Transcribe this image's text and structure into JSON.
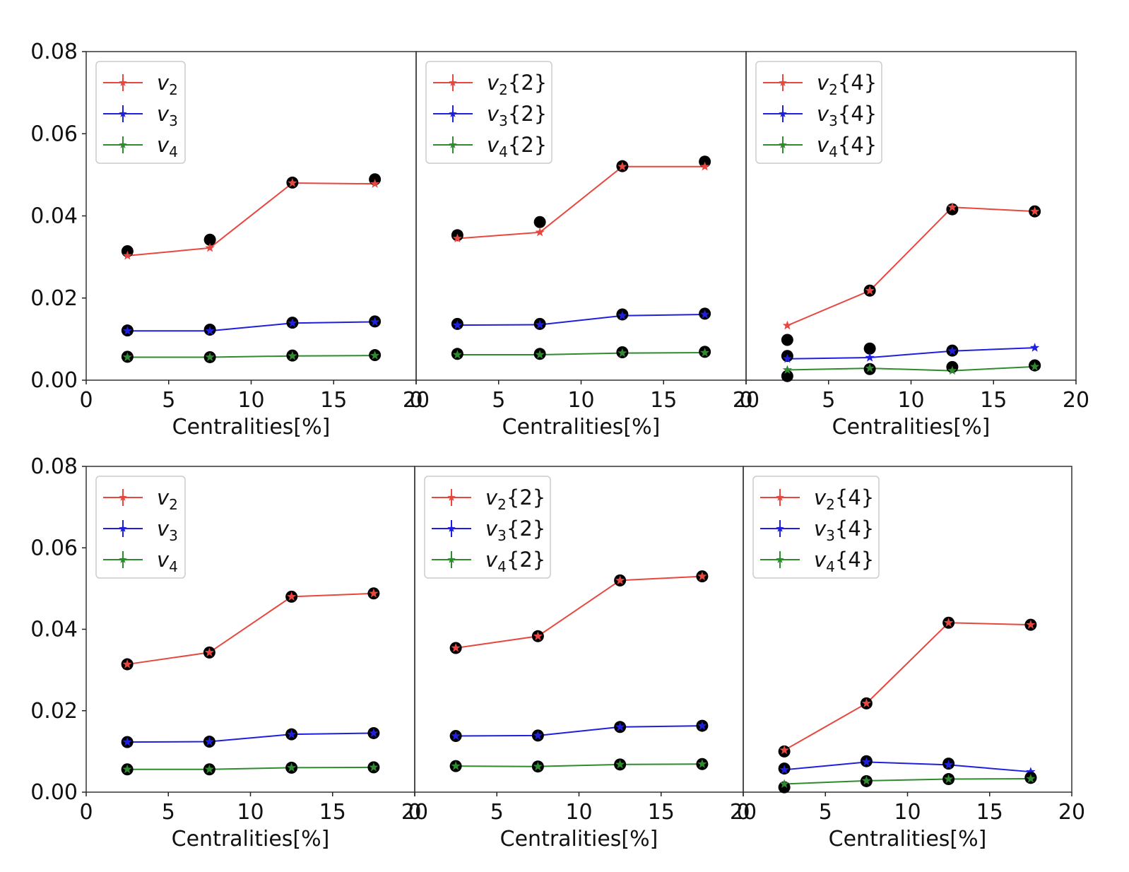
{
  "colors": {
    "v2": "#e8473f",
    "v3": "#1f1fdf",
    "v4": "#2e8b2e",
    "reference": "#000000"
  },
  "chart_data": {
    "type": "line",
    "y_ticks": [
      "0.00",
      "0.02",
      "0.04",
      "0.06",
      "0.08"
    ],
    "x_ticks": [
      "0",
      "5",
      "10",
      "15",
      "20"
    ],
    "ylim": [
      0,
      0.08
    ],
    "xlim": [
      0,
      20
    ],
    "x": [
      2.5,
      7.5,
      12.5,
      17.5
    ],
    "rows": [
      {
        "panels": [
          {
            "xlabel": "Centralities[%]",
            "legend": [
              {
                "sym": "v",
                "sub": "2",
                "suffix": ""
              },
              {
                "sym": "v",
                "sub": "3",
                "suffix": ""
              },
              {
                "sym": "v",
                "sub": "4",
                "suffix": ""
              }
            ],
            "series": [
              {
                "name": "v2",
                "color_key": "v2",
                "values": [
                  0.0303,
                  0.0322,
                  0.048,
                  0.0478
                ],
                "reference": [
                  0.0314,
                  0.0342,
                  0.0481,
                  0.0489
                ]
              },
              {
                "name": "v3",
                "color_key": "v3",
                "values": [
                  0.012,
                  0.012,
                  0.0139,
                  0.0142
                ],
                "reference": [
                  0.0121,
                  0.0123,
                  0.014,
                  0.0143
                ]
              },
              {
                "name": "v4",
                "color_key": "v4",
                "values": [
                  0.0056,
                  0.0056,
                  0.0059,
                  0.006
                ],
                "reference": [
                  0.0057,
                  0.0056,
                  0.006,
                  0.0061
                ]
              }
            ]
          },
          {
            "xlabel": "Centralities[%]",
            "legend": [
              {
                "sym": "v",
                "sub": "2",
                "suffix": "{2}"
              },
              {
                "sym": "v",
                "sub": "3",
                "suffix": "{2}"
              },
              {
                "sym": "v",
                "sub": "4",
                "suffix": "{2}"
              }
            ],
            "series": [
              {
                "name": "v2{2}",
                "color_key": "v2",
                "values": [
                  0.0345,
                  0.036,
                  0.052,
                  0.052
                ],
                "reference": [
                  0.0353,
                  0.0385,
                  0.0521,
                  0.0532
                ]
              },
              {
                "name": "v3{2}",
                "color_key": "v3",
                "values": [
                  0.0134,
                  0.0135,
                  0.0157,
                  0.016
                ],
                "reference": [
                  0.0137,
                  0.0137,
                  0.016,
                  0.0162
                ]
              },
              {
                "name": "v4{2}",
                "color_key": "v4",
                "values": [
                  0.0062,
                  0.0062,
                  0.0066,
                  0.0067
                ],
                "reference": [
                  0.0064,
                  0.0064,
                  0.0068,
                  0.0069
                ]
              }
            ]
          },
          {
            "xlabel": "Centralities[%]",
            "legend": [
              {
                "sym": "v",
                "sub": "2",
                "suffix": "{4}"
              },
              {
                "sym": "v",
                "sub": "3",
                "suffix": "{4}"
              },
              {
                "sym": "v",
                "sub": "4",
                "suffix": "{4}"
              }
            ],
            "series": [
              {
                "name": "v2{4}",
                "color_key": "v2",
                "values": [
                  0.0133,
                  0.0218,
                  0.0421,
                  0.0411
                ],
                "reference": [
                  0.0098,
                  0.0218,
                  0.0416,
                  0.0411
                ]
              },
              {
                "name": "v3{4}",
                "color_key": "v3",
                "values": [
                  0.0052,
                  0.0055,
                  0.0071,
                  0.0079
                ],
                "reference": [
                  0.0059,
                  0.0077,
                  0.0072,
                  0.0036
                ]
              },
              {
                "name": "v4{4}",
                "color_key": "v4",
                "values": [
                  0.0025,
                  0.0029,
                  0.0023,
                  0.0033
                ],
                "reference": [
                  0.001,
                  0.0027,
                  0.0032,
                  0.0036
                ]
              }
            ]
          }
        ]
      },
      {
        "panels": [
          {
            "xlabel": "Centralities[%]",
            "legend": [
              {
                "sym": "v",
                "sub": "2",
                "suffix": ""
              },
              {
                "sym": "v",
                "sub": "3",
                "suffix": ""
              },
              {
                "sym": "v",
                "sub": "4",
                "suffix": ""
              }
            ],
            "series": [
              {
                "name": "v2",
                "color_key": "v2",
                "values": [
                  0.0314,
                  0.0343,
                  0.048,
                  0.0488
                ],
                "reference": [
                  0.0314,
                  0.0343,
                  0.048,
                  0.0488
                ]
              },
              {
                "name": "v3",
                "color_key": "v3",
                "values": [
                  0.0123,
                  0.0124,
                  0.0142,
                  0.0145
                ],
                "reference": [
                  0.0123,
                  0.0124,
                  0.0142,
                  0.0145
                ]
              },
              {
                "name": "v4",
                "color_key": "v4",
                "values": [
                  0.0056,
                  0.0056,
                  0.006,
                  0.0061
                ],
                "reference": [
                  0.0056,
                  0.0056,
                  0.006,
                  0.0061
                ]
              }
            ]
          },
          {
            "xlabel": "Centralities[%]",
            "legend": [
              {
                "sym": "v",
                "sub": "2",
                "suffix": "{2}"
              },
              {
                "sym": "v",
                "sub": "3",
                "suffix": "{2}"
              },
              {
                "sym": "v",
                "sub": "4",
                "suffix": "{2}"
              }
            ],
            "series": [
              {
                "name": "v2{2}",
                "color_key": "v2",
                "values": [
                  0.0354,
                  0.0383,
                  0.052,
                  0.053
                ],
                "reference": [
                  0.0354,
                  0.0383,
                  0.052,
                  0.053
                ]
              },
              {
                "name": "v3{2}",
                "color_key": "v3",
                "values": [
                  0.0138,
                  0.0139,
                  0.016,
                  0.0163
                ],
                "reference": [
                  0.0138,
                  0.0139,
                  0.016,
                  0.0163
                ]
              },
              {
                "name": "v4{2}",
                "color_key": "v4",
                "values": [
                  0.0064,
                  0.0063,
                  0.0068,
                  0.0069
                ],
                "reference": [
                  0.0064,
                  0.0063,
                  0.0068,
                  0.0069
                ]
              }
            ]
          },
          {
            "xlabel": "Centralities[%]",
            "legend": [
              {
                "sym": "v",
                "sub": "2",
                "suffix": "{4}"
              },
              {
                "sym": "v",
                "sub": "3",
                "suffix": "{4}"
              },
              {
                "sym": "v",
                "sub": "4",
                "suffix": "{4}"
              }
            ],
            "series": [
              {
                "name": "v2{4}",
                "color_key": "v2",
                "values": [
                  0.0103,
                  0.0218,
                  0.0416,
                  0.0411
                ],
                "reference": [
                  0.01,
                  0.0218,
                  0.0416,
                  0.0411
                ]
              },
              {
                "name": "v3{4}",
                "color_key": "v3",
                "values": [
                  0.0055,
                  0.0074,
                  0.0067,
                  0.005
                ],
                "reference": [
                  0.0058,
                  0.0076,
                  0.007,
                  0.0036
                ]
              },
              {
                "name": "v4{4}",
                "color_key": "v4",
                "values": [
                  0.002,
                  0.0028,
                  0.0032,
                  0.0033
                ],
                "reference": [
                  0.0012,
                  0.0027,
                  0.0032,
                  0.0035
                ]
              }
            ]
          }
        ]
      }
    ]
  }
}
